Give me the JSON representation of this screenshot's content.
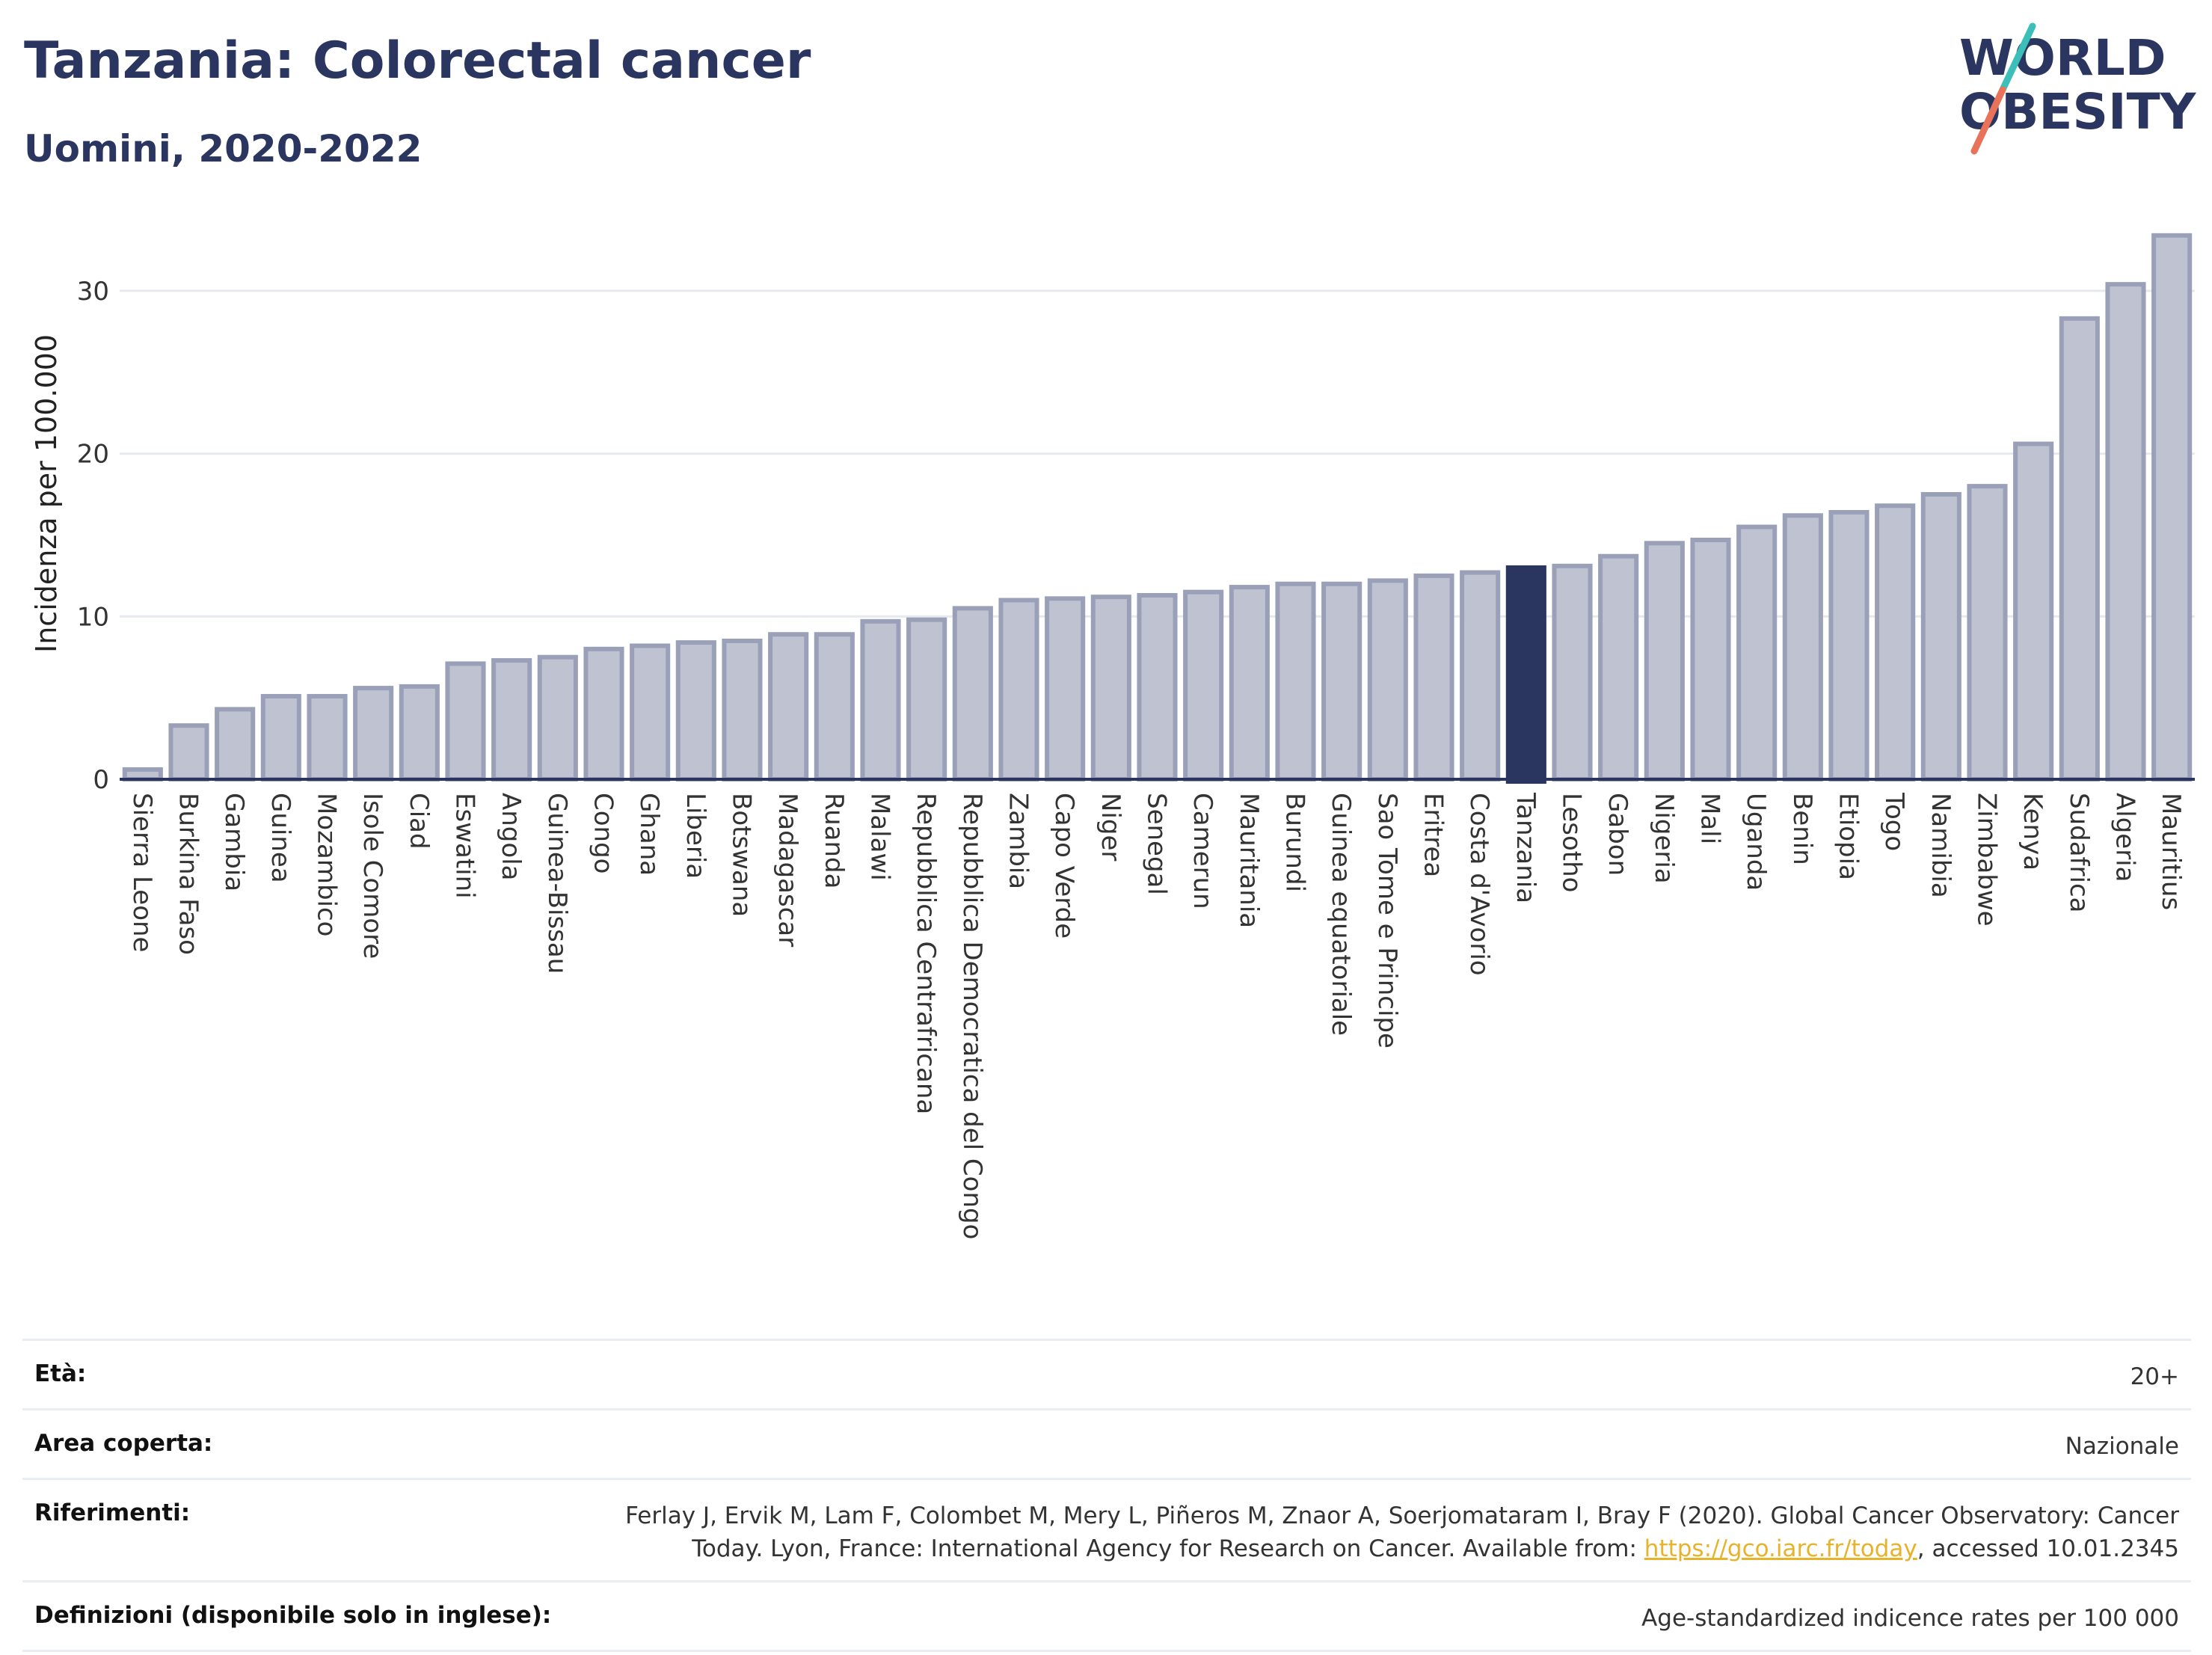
{
  "header": {
    "title": "Tanzania: Colorectal cancer",
    "subtitle": "Uomini, 2020-2022"
  },
  "logo": {
    "line1": "WORLD",
    "line2": "OBESITY",
    "colors": {
      "text": "#2b3660",
      "slash_teal": "#3bbfb8",
      "slash_coral": "#e8735a"
    }
  },
  "chart_data": {
    "type": "bar",
    "ylabel": "Incidenza per 100.000",
    "xlabel": "",
    "ylim": [
      0,
      35
    ],
    "yticks": [
      0,
      10,
      20,
      30
    ],
    "grid": true,
    "highlight": "Tanzania",
    "colors": {
      "bar": "#bfc3d1",
      "bar_edge": "#9aa0b8",
      "highlight": "#2b3660",
      "axis": "#2b3660",
      "grid": "#e6e9ee"
    },
    "categories": [
      "Sierra Leone",
      "Burkina Faso",
      "Gambia",
      "Guinea",
      "Mozambico",
      "Isole Comore",
      "Ciad",
      "Eswatini",
      "Angola",
      "Guinea-Bissau",
      "Congo",
      "Ghana",
      "Liberia",
      "Botswana",
      "Madagascar",
      "Ruanda",
      "Malawi",
      "Repubblica Centrafricana",
      "Repubblica Democratica del Congo",
      "Zambia",
      "Capo Verde",
      "Niger",
      "Senegal",
      "Camerun",
      "Mauritania",
      "Burundi",
      "Guinea equatoriale",
      "Sao Tome e Principe",
      "Eritrea",
      "Costa d'Avorio",
      "Tanzania",
      "Lesotho",
      "Gabon",
      "Nigeria",
      "Mali",
      "Uganda",
      "Benin",
      "Etiopia",
      "Togo",
      "Namibia",
      "Zimbabwe",
      "Kenya",
      "Sudafrica",
      "Algeria",
      "Mauritius"
    ],
    "values": [
      0.6,
      3.3,
      4.3,
      5.1,
      5.1,
      5.6,
      5.7,
      7.1,
      7.3,
      7.5,
      8.0,
      8.2,
      8.4,
      8.5,
      8.9,
      8.9,
      9.7,
      9.8,
      10.5,
      11.0,
      11.1,
      11.2,
      11.3,
      11.5,
      11.8,
      12.0,
      12.0,
      12.2,
      12.5,
      12.7,
      13.0,
      13.1,
      13.7,
      14.5,
      14.7,
      15.5,
      16.2,
      16.4,
      16.8,
      17.5,
      18.0,
      20.6,
      28.3,
      30.4,
      33.4
    ]
  },
  "info": [
    {
      "key": "Età:",
      "value": "20+"
    },
    {
      "key": "Area coperta:",
      "value": "Nazionale"
    },
    {
      "key": "Riferimenti:",
      "value": "Ferlay J, Ervik M, Lam F, Colombet M, Mery L, Piñeros M, Znaor A, Soerjomataram I, Bray F (2020). Global Cancer Observatory: Cancer Today. Lyon, France: International Agency for Research on Cancer. Available from: ",
      "link": "https://gco.iarc.fr/today",
      "suffix": ", accessed 10.01.2345"
    },
    {
      "key": "Definizioni (disponibile solo in inglese):",
      "value": "Age-standardized indicence rates per 100 000"
    }
  ]
}
